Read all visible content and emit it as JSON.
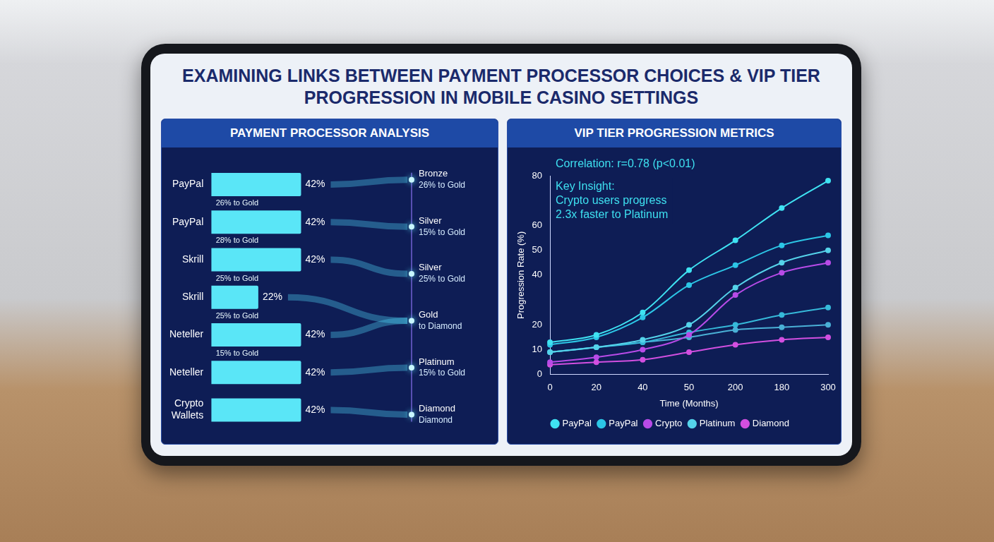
{
  "title": "EXAMINING LINKS BETWEEN PAYMENT PROCESSOR CHOICES & VIP TIER PROGRESSION IN MOBILE CASINO SETTINGS",
  "chart_data": [
    {
      "type": "bar",
      "title": "PAYMENT PROCESSOR ANALYSIS",
      "orientation": "horizontal",
      "categories": [
        "PayPal",
        "PayPal",
        "Skrill",
        "Skrill",
        "Neteller",
        "Neteller",
        "Crypto Wallets"
      ],
      "values": [
        42,
        42,
        42,
        22,
        42,
        42,
        42
      ],
      "value_labels": [
        "42%",
        "42%",
        "42%",
        "22%",
        "42%",
        "42%",
        "42%"
      ],
      "data_labels": true,
      "tick_labels": "y",
      "grid": false,
      "color": "#5ae6f7",
      "annotations": [
        "26% to Gold",
        "28% to Gold",
        "25% to Gold",
        "25% to Gold",
        "15% to Gold"
      ],
      "tiers": [
        {
          "name": "Bronze",
          "label": "26% to Gold"
        },
        {
          "name": "Silver",
          "label": "15% to Gold"
        },
        {
          "name": "Silver",
          "label": "25% to Gold"
        },
        {
          "name": "Gold",
          "label": "to Diamond"
        },
        {
          "name": "Platinum",
          "label": "15% to Gold"
        },
        {
          "name": "Diamond",
          "label": "Diamond"
        }
      ]
    },
    {
      "type": "line",
      "title": "VIP TIER PROGRESSION METRICS",
      "xlabel": "Time (Months)",
      "ylabel": "Progression Rate (%)",
      "categories": [
        "0",
        "20",
        "40",
        "50",
        "200",
        "180",
        "300"
      ],
      "ylim": [
        0,
        80
      ],
      "yticks": [
        0,
        10,
        20,
        40,
        50,
        60,
        80
      ],
      "grid": false,
      "legend": "bottom",
      "marker": "circle",
      "annotations": [
        "Correlation: r=0.78 (p<0.01)",
        "Key Insight:",
        "Crypto users progress",
        "2.3x faster to Platinum"
      ],
      "series": [
        {
          "name": "PayPal",
          "color": "#3fe2f2",
          "values": [
            13,
            16,
            25,
            42,
            54,
            67,
            78
          ]
        },
        {
          "name": "PayPal",
          "color": "#2cc6e6",
          "values": [
            12,
            15,
            23,
            36,
            44,
            52,
            56
          ]
        },
        {
          "name": "Crypto",
          "color": "#b84be8",
          "values": [
            5,
            7,
            10,
            16,
            32,
            41,
            45
          ]
        },
        {
          "name": "Platinum",
          "color": "#55d3ea",
          "values": [
            9,
            11,
            14,
            20,
            35,
            45,
            50
          ]
        },
        {
          "name": "Diamond",
          "color": "#d24fe0",
          "values": [
            4,
            5,
            6,
            9,
            12,
            14,
            15
          ]
        },
        {
          "color": "#36b9d9",
          "values": [
            9,
            11,
            13,
            17,
            20,
            24,
            27
          ]
        },
        {
          "color": "#4ab0d6",
          "values": [
            9,
            11,
            13,
            15,
            18,
            19,
            20
          ]
        }
      ]
    }
  ]
}
